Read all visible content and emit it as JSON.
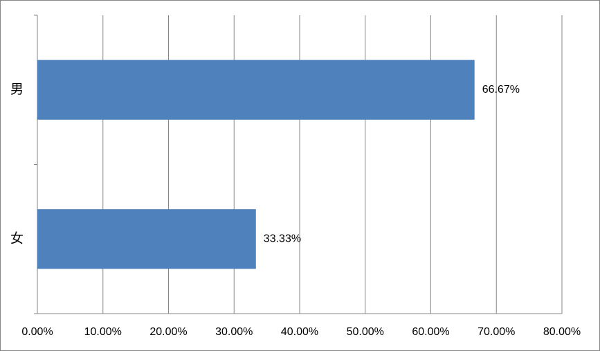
{
  "chart_data": {
    "type": "bar",
    "orientation": "horizontal",
    "categories": [
      "男",
      "女"
    ],
    "values": [
      66.67,
      33.33
    ],
    "value_labels": [
      "66.67%",
      "33.33%"
    ],
    "color": "#4f81bd",
    "xlim": [
      0,
      80
    ],
    "xticks": [
      {
        "value": 0,
        "label": "0.00%"
      },
      {
        "value": 10,
        "label": "10.00%"
      },
      {
        "value": 20,
        "label": "20.00%"
      },
      {
        "value": 30,
        "label": "30.00%"
      },
      {
        "value": 40,
        "label": "40.00%"
      },
      {
        "value": 50,
        "label": "50.00%"
      },
      {
        "value": 60,
        "label": "60.00%"
      },
      {
        "value": 70,
        "label": "70.00%"
      },
      {
        "value": 80,
        "label": "80.00%"
      }
    ],
    "grid": true
  }
}
